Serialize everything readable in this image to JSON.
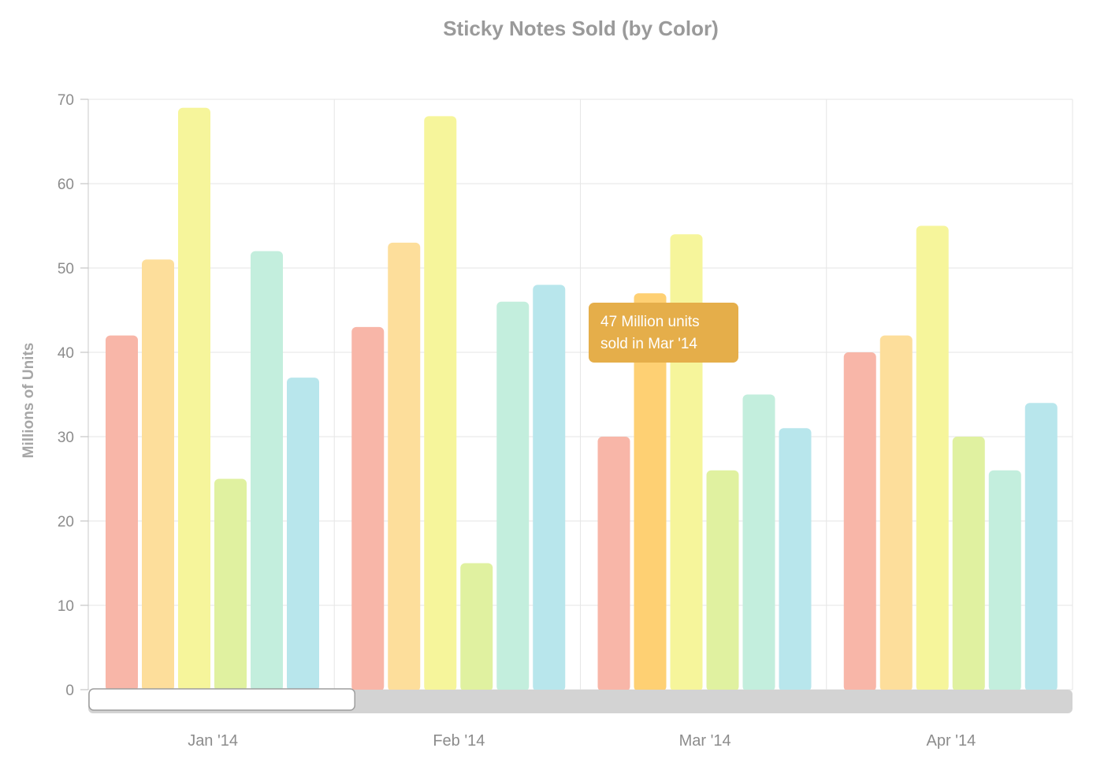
{
  "chart_data": {
    "type": "bar",
    "title": "Sticky Notes Sold (by Color)",
    "xlabel": "",
    "ylabel": "Millions of Units",
    "ylim": [
      0,
      70
    ],
    "yticks": [
      0,
      10,
      20,
      30,
      40,
      50,
      60,
      70
    ],
    "grid": true,
    "legend": "none",
    "categories": [
      "Jan '14",
      "Feb '14",
      "Mar '14",
      "Apr '14"
    ],
    "series": [
      {
        "color": "#f8b6a8",
        "values": [
          42,
          43,
          30,
          40
        ]
      },
      {
        "color": "#fdde9b",
        "values": [
          51,
          53,
          47,
          42
        ]
      },
      {
        "color": "#f6f59b",
        "values": [
          69,
          68,
          54,
          55
        ]
      },
      {
        "color": "#e0f1a0",
        "values": [
          25,
          15,
          26,
          30
        ]
      },
      {
        "color": "#c3eedd",
        "values": [
          52,
          46,
          35,
          26
        ]
      },
      {
        "color": "#b8e6ec",
        "values": [
          37,
          48,
          31,
          34
        ]
      }
    ],
    "highlight": {
      "category": "Mar '14",
      "series_index": 1,
      "color": "#fed073"
    },
    "tooltip": {
      "line1": "47 Million units",
      "line2": "sold in Mar '14",
      "color": "#e5ae4a"
    },
    "scrollbar": {
      "visible_fraction": 0.27
    }
  }
}
